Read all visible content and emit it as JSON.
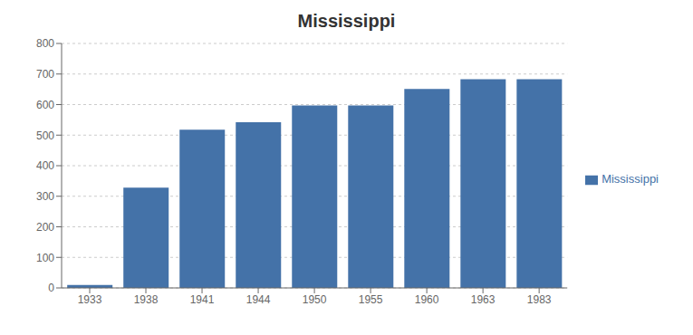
{
  "chart_data": {
    "type": "bar",
    "title": "Mississippi",
    "categories": [
      "1933",
      "1938",
      "1941",
      "1944",
      "1950",
      "1955",
      "1960",
      "1963",
      "1983"
    ],
    "series": [
      {
        "name": "Mississippi",
        "color": "#4472a8",
        "values": [
          10,
          328,
          518,
          542,
          597,
          597,
          651,
          683,
          683
        ]
      }
    ],
    "ylim": [
      0,
      800
    ],
    "yticks": [
      0,
      100,
      200,
      300,
      400,
      500,
      600,
      700,
      800
    ],
    "grid": true,
    "legend": "right"
  }
}
